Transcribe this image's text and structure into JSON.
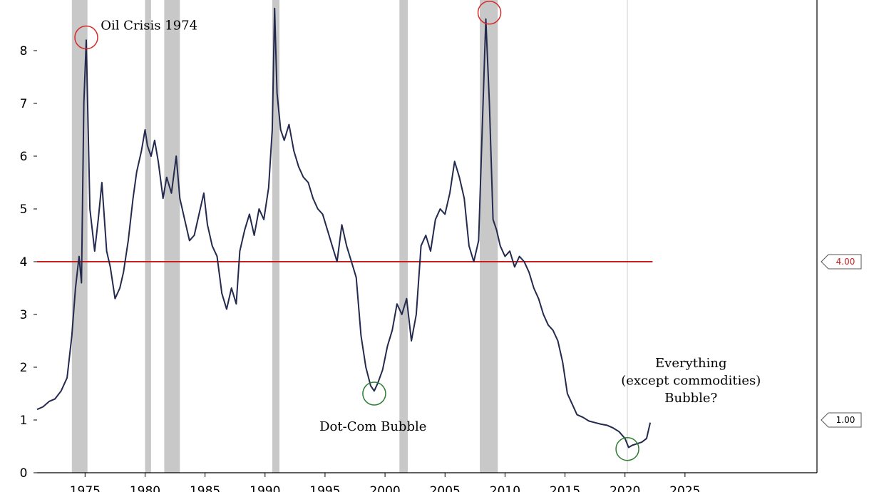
{
  "chart_data": {
    "type": "line",
    "title": "",
    "xlabel": "",
    "ylabel": "",
    "xlim": [
      1971,
      2036
    ],
    "ylim": [
      0,
      9
    ],
    "x_ticks": [
      1975,
      1980,
      1985,
      1990,
      1995,
      2000,
      2005,
      2010,
      2015,
      2020,
      2025
    ],
    "y_ticks": [
      0,
      1,
      2,
      3,
      4,
      5,
      6,
      7,
      8
    ],
    "grid": false,
    "legend": "none",
    "colors": {
      "line": "#232a4e",
      "reference": "#c81e1e",
      "recession": "#c8c8c8",
      "circle_red": "#d42a2a",
      "circle_green": "#2e7d32",
      "marker_line": "#d0d0d0"
    },
    "recessions": [
      [
        1973.9,
        1975.2
      ],
      [
        1980.0,
        1980.5
      ],
      [
        1981.6,
        1982.9
      ],
      [
        1990.6,
        1991.2
      ],
      [
        2001.2,
        2001.9
      ],
      [
        2007.9,
        2009.4
      ]
    ],
    "reference_lines": [
      {
        "value": 4.0,
        "label": "4.00",
        "color": "#c81e1e"
      },
      {
        "value": 1.0,
        "label": "1.00",
        "color": "#000000"
      }
    ],
    "vertical_marker": 2020.2,
    "series": [
      {
        "x": [
          1971.0,
          1971.5,
          1972.0,
          1972.5,
          1973.0,
          1973.5,
          1973.9,
          1974.2,
          1974.5,
          1974.7,
          1974.9,
          1975.1,
          1975.4,
          1975.8,
          1976.1,
          1976.4,
          1976.8,
          1977.1,
          1977.5,
          1977.9,
          1978.2,
          1978.6,
          1979.0,
          1979.3,
          1979.7,
          1980.0,
          1980.2,
          1980.5,
          1980.8,
          1981.1,
          1981.5,
          1981.8,
          1982.2,
          1982.6,
          1982.9,
          1983.3,
          1983.7,
          1984.1,
          1984.5,
          1984.9,
          1985.2,
          1985.6,
          1986.0,
          1986.4,
          1986.8,
          1987.2,
          1987.6,
          1987.9,
          1988.3,
          1988.7,
          1989.1,
          1989.5,
          1989.9,
          1990.3,
          1990.6,
          1990.8,
          1991.0,
          1991.3,
          1991.6,
          1992.0,
          1992.4,
          1992.8,
          1993.2,
          1993.6,
          1994.0,
          1994.4,
          1994.8,
          1995.2,
          1995.6,
          1996.0,
          1996.4,
          1996.8,
          1997.2,
          1997.6,
          1998.0,
          1998.4,
          1998.8,
          1999.1,
          1999.4,
          1999.8,
          2000.2,
          2000.6,
          2001.0,
          2001.4,
          2001.8,
          2002.2,
          2002.6,
          2003.0,
          2003.4,
          2003.8,
          2004.2,
          2004.6,
          2005.0,
          2005.4,
          2005.8,
          2006.2,
          2006.6,
          2007.0,
          2007.4,
          2007.8,
          2008.1,
          2008.4,
          2008.7,
          2009.0,
          2009.3,
          2009.6,
          2010.0,
          2010.4,
          2010.8,
          2011.2,
          2011.6,
          2012.0,
          2012.4,
          2012.8,
          2013.2,
          2013.6,
          2014.0,
          2014.4,
          2014.8,
          2015.2,
          2015.6,
          2016.0,
          2016.5,
          2017.0,
          2017.5,
          2018.0,
          2018.5,
          2019.0,
          2019.5,
          2020.0,
          2020.3,
          2020.6,
          2021.0,
          2021.4,
          2021.8,
          2022.1
        ],
        "values": [
          1.2,
          1.25,
          1.35,
          1.4,
          1.55,
          1.8,
          2.6,
          3.5,
          4.1,
          3.6,
          7.0,
          8.2,
          5.0,
          4.2,
          4.8,
          5.5,
          4.2,
          3.9,
          3.3,
          3.5,
          3.8,
          4.4,
          5.2,
          5.7,
          6.1,
          6.5,
          6.2,
          6.0,
          6.3,
          5.9,
          5.2,
          5.6,
          5.3,
          6.0,
          5.2,
          4.8,
          4.4,
          4.5,
          4.9,
          5.3,
          4.7,
          4.3,
          4.1,
          3.4,
          3.1,
          3.5,
          3.2,
          4.2,
          4.6,
          4.9,
          4.5,
          5.0,
          4.8,
          5.4,
          6.5,
          8.8,
          7.2,
          6.5,
          6.3,
          6.6,
          6.1,
          5.8,
          5.6,
          5.5,
          5.2,
          5.0,
          4.9,
          4.6,
          4.3,
          4.0,
          4.7,
          4.3,
          4.0,
          3.7,
          2.6,
          2.0,
          1.65,
          1.55,
          1.7,
          1.95,
          2.4,
          2.7,
          3.2,
          3.0,
          3.3,
          2.5,
          3.0,
          4.3,
          4.5,
          4.2,
          4.8,
          5.0,
          4.9,
          5.3,
          5.9,
          5.6,
          5.2,
          4.3,
          4.0,
          4.4,
          6.5,
          8.6,
          7.0,
          4.8,
          4.6,
          4.3,
          4.1,
          4.2,
          3.9,
          4.1,
          4.0,
          3.8,
          3.5,
          3.3,
          3.0,
          2.8,
          2.7,
          2.5,
          2.1,
          1.5,
          1.3,
          1.1,
          1.05,
          0.98,
          0.95,
          0.92,
          0.9,
          0.85,
          0.78,
          0.65,
          0.48,
          0.52,
          0.55,
          0.58,
          0.65,
          0.95
        ]
      }
    ],
    "annotations": [
      {
        "text": "Oil Crisis 1974",
        "x": 1976.3,
        "y": 8.4
      },
      {
        "text": "Dot-Com Bubble",
        "x": 1999.0,
        "y": 0.8
      },
      {
        "text": "Everything",
        "x": 2025.5,
        "y": 2.0
      },
      {
        "text": "(except commodities)",
        "x": 2025.5,
        "y": 1.67
      },
      {
        "text": "Bubble?",
        "x": 2025.5,
        "y": 1.34
      }
    ],
    "circles": [
      {
        "x": 1975.1,
        "y": 8.25,
        "color": "red"
      },
      {
        "x": 2008.7,
        "y": 8.72,
        "color": "red"
      },
      {
        "x": 1999.1,
        "y": 1.5,
        "color": "green"
      },
      {
        "x": 2020.2,
        "y": 0.45,
        "color": "green"
      }
    ]
  }
}
